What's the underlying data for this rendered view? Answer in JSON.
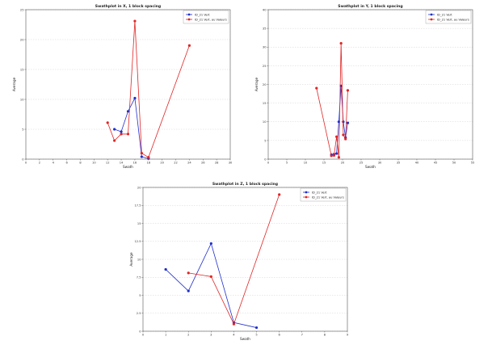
{
  "chart_data": [
    {
      "type": "line",
      "title": "Swathplot in X, 1 block spacing",
      "xlabel": "Swath",
      "ylabel": "Average",
      "xlim": [
        0,
        30
      ],
      "ylim": [
        0,
        25
      ],
      "xticks": [
        0,
        2,
        4,
        6,
        8,
        10,
        12,
        14,
        16,
        18,
        20,
        22,
        24,
        26,
        28,
        30
      ],
      "yticks": [
        0,
        5,
        10,
        15,
        20,
        25
      ],
      "grid": "horizontal-dotted",
      "legend_position": "top-right",
      "series": [
        {
          "name": "ID_21 Vert",
          "color": "#1f2fcc",
          "x": [
            13,
            14,
            15,
            16,
            17,
            18
          ],
          "y": [
            5.0,
            4.6,
            8.0,
            10.2,
            0.4,
            0.1
          ]
        },
        {
          "name": "ID_21 Vert. au Valeurs",
          "color": "#e02525",
          "x": [
            12,
            13,
            14,
            15,
            16,
            17,
            18,
            24
          ],
          "y": [
            6.1,
            3.1,
            4.2,
            4.2,
            23.1,
            1.0,
            0.3,
            19.0
          ]
        }
      ]
    },
    {
      "type": "line",
      "title": "Swathplot in Y, 1 block spacing",
      "xlabel": "Swath",
      "ylabel": "Average",
      "xlim": [
        0,
        55
      ],
      "ylim": [
        0,
        40
      ],
      "xticks": [
        0,
        5,
        10,
        15,
        20,
        25,
        30,
        35,
        40,
        45,
        50,
        55
      ],
      "yticks": [
        0,
        5,
        10,
        15,
        20,
        25,
        30,
        35,
        40
      ],
      "grid": "horizontal-dotted",
      "legend_position": "top-right",
      "series": [
        {
          "name": "ID_21 Vert",
          "color": "#1f2fcc",
          "x": [
            17,
            17.7,
            18.4,
            19,
            19.6,
            20.2,
            20.8,
            21.4
          ],
          "y": [
            1.2,
            1.3,
            1.5,
            10.0,
            19.6,
            10.0,
            5.8,
            9.7
          ]
        },
        {
          "name": "ID_21 Vert. au Valeurs",
          "color": "#e02525",
          "x": [
            13,
            17,
            17.7,
            18.4,
            19,
            19.6,
            20.2,
            20.8,
            21.4
          ],
          "y": [
            19.0,
            0.9,
            1.0,
            6.0,
            0.5,
            31.0,
            6.5,
            5.4,
            18.4
          ]
        }
      ]
    },
    {
      "type": "line",
      "title": "Swathplot in Z, 1 block spacing",
      "xlabel": "Swath",
      "ylabel": "Average",
      "xlim": [
        0,
        9
      ],
      "ylim": [
        0,
        20
      ],
      "xticks": [
        0,
        1,
        2,
        3,
        4,
        5,
        6,
        7,
        8,
        9
      ],
      "yticks": [
        0,
        2.5,
        5,
        7.5,
        10,
        12.5,
        15,
        17.5,
        20
      ],
      "grid": "horizontal-dotted",
      "legend_position": "top-right",
      "series": [
        {
          "name": "ID_21 Vert",
          "color": "#1f2fcc",
          "x": [
            1,
            2,
            3,
            4,
            5
          ],
          "y": [
            8.6,
            5.6,
            12.2,
            1.2,
            0.5
          ]
        },
        {
          "name": "ID_21 Vert. au Valeurs",
          "color": "#e02525",
          "x": [
            2,
            3,
            4,
            6
          ],
          "y": [
            8.1,
            7.6,
            1.0,
            19.0
          ]
        }
      ]
    }
  ]
}
